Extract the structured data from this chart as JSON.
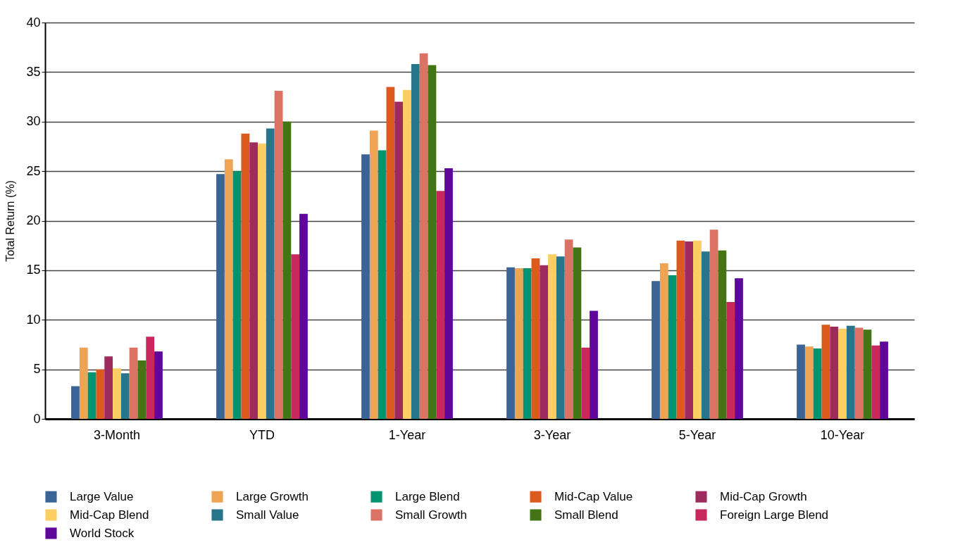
{
  "chart_data": {
    "type": "bar",
    "ylabel": "Total Return (%)",
    "categories": [
      "3-Month",
      "YTD",
      "1-Year",
      "3-Year",
      "5-Year",
      "10-Year"
    ],
    "ylim": [
      0,
      40
    ],
    "yticks": [
      0,
      5,
      10,
      15,
      20,
      25,
      30,
      35,
      40
    ],
    "grid": "y",
    "legend": "bottom",
    "series": [
      {
        "name": "Large Value",
        "color": "#3a6496",
        "values": [
          3.3,
          24.7,
          26.7,
          15.3,
          13.9,
          7.5
        ]
      },
      {
        "name": "Large Growth",
        "color": "#efa355",
        "values": [
          7.2,
          26.2,
          29.1,
          15.2,
          15.7,
          7.3
        ]
      },
      {
        "name": "Large Blend",
        "color": "#009370",
        "values": [
          4.7,
          25.0,
          27.1,
          15.2,
          14.5,
          7.1
        ]
      },
      {
        "name": "Mid-Cap Value",
        "color": "#dd5a1f",
        "values": [
          5.0,
          28.8,
          33.5,
          16.2,
          18.0,
          9.5
        ]
      },
      {
        "name": "Mid-Cap Growth",
        "color": "#9e2b5e",
        "values": [
          6.3,
          27.9,
          32.0,
          15.5,
          17.9,
          9.3
        ]
      },
      {
        "name": "Mid-Cap Blend",
        "color": "#fdcf62",
        "values": [
          5.1,
          27.8,
          33.2,
          16.6,
          18.0,
          9.1
        ]
      },
      {
        "name": "Small Value",
        "color": "#26758b",
        "values": [
          4.6,
          29.3,
          35.8,
          16.4,
          16.9,
          9.4
        ]
      },
      {
        "name": "Small Growth",
        "color": "#db7263",
        "values": [
          7.2,
          33.1,
          36.9,
          18.1,
          19.1,
          9.2
        ]
      },
      {
        "name": "Small Blend",
        "color": "#447515",
        "values": [
          5.9,
          30.0,
          35.7,
          17.3,
          17.0,
          9.0
        ]
      },
      {
        "name": "Foreign Large Blend",
        "color": "#c8285b",
        "values": [
          8.3,
          16.6,
          23.0,
          7.2,
          11.8,
          7.4
        ]
      },
      {
        "name": "World Stock",
        "color": "#5f069b",
        "values": [
          6.8,
          20.7,
          25.3,
          10.9,
          14.2,
          7.8
        ]
      }
    ]
  }
}
